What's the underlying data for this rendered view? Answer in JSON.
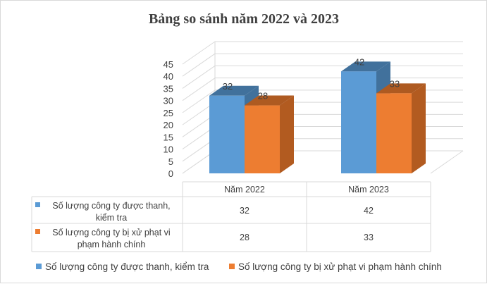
{
  "chart_data": {
    "type": "bar",
    "subtype": "3d-clustered-column-with-data-table",
    "title": "Bảng so sánh năm 2022 và 2023",
    "categories": [
      "Năm 2022",
      "Năm 2023"
    ],
    "series": [
      {
        "name": "Số lượng công ty được thanh, kiểm tra",
        "table_label_lines": [
          "Số lượng công ty được thanh,",
          "kiểm tra"
        ],
        "values": [
          32,
          42
        ],
        "color": "#5b9bd5",
        "top_color": "#41719c",
        "side_color": "#41719c"
      },
      {
        "name": "Số lượng công ty bị xử phạt vi phạm hành chính",
        "table_label_lines": [
          "Số lượng công ty bị xử phạt vi",
          "phạm hành chính"
        ],
        "values": [
          28,
          33
        ],
        "color": "#ed7d31",
        "top_color": "#ae5a21",
        "side_color": "#b25b20"
      }
    ],
    "ylim": [
      0,
      45
    ],
    "yticks": [
      "0",
      "5",
      "10",
      "15",
      "20",
      "25",
      "30",
      "35",
      "40",
      "45"
    ],
    "grid": true,
    "legend_position": "bottom",
    "data_table": true,
    "colors": {
      "grid": "#d9d9d9",
      "floor": "#d9d9d9",
      "text": "#404040"
    }
  }
}
